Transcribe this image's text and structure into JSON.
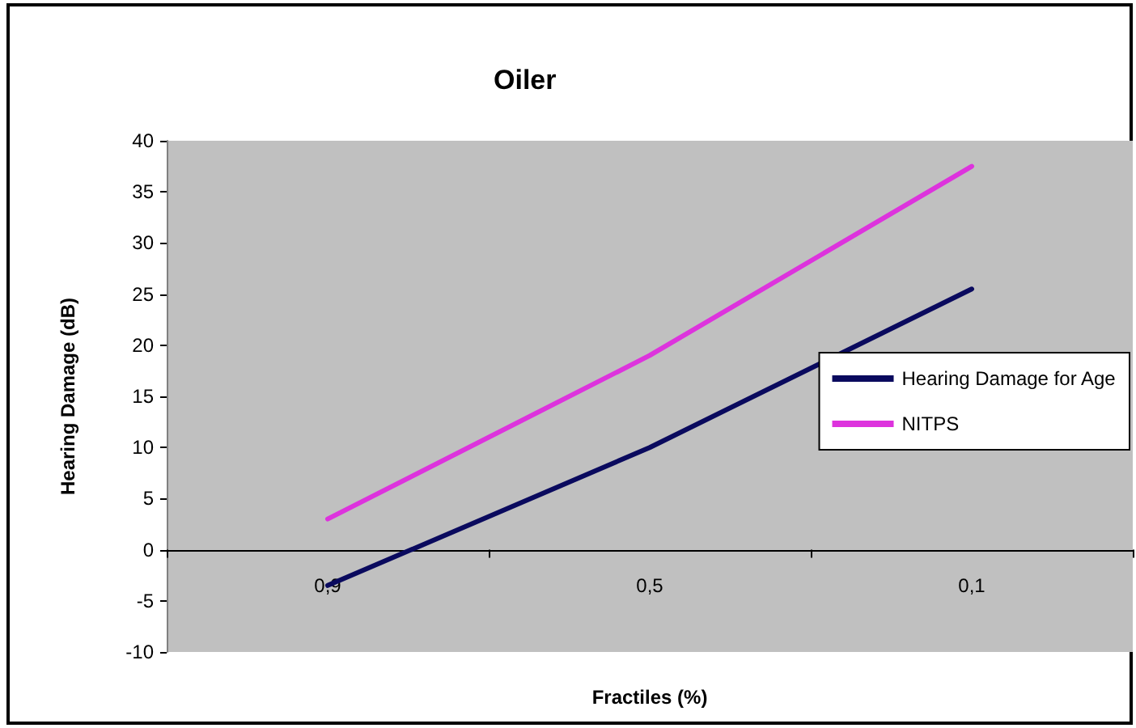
{
  "chart_data": {
    "type": "line",
    "title": "Oiler",
    "xlabel": "Fractiles (%)",
    "ylabel": "Hearing Damage (dB)",
    "categories": [
      "0,9",
      "0,5",
      "0,1"
    ],
    "series": [
      {
        "name": "Hearing Damage for Age",
        "color": "#0a0a5e",
        "values": [
          -3.5,
          10,
          25.5
        ]
      },
      {
        "name": "NITPS",
        "color": "#dd33dd",
        "values": [
          3,
          19,
          37.5
        ]
      }
    ],
    "ylim": [
      -10,
      40
    ],
    "yticks": [
      -10,
      -5,
      0,
      5,
      10,
      15,
      20,
      25,
      30,
      35,
      40
    ],
    "grid": false,
    "legend": "right",
    "marker": "none"
  }
}
